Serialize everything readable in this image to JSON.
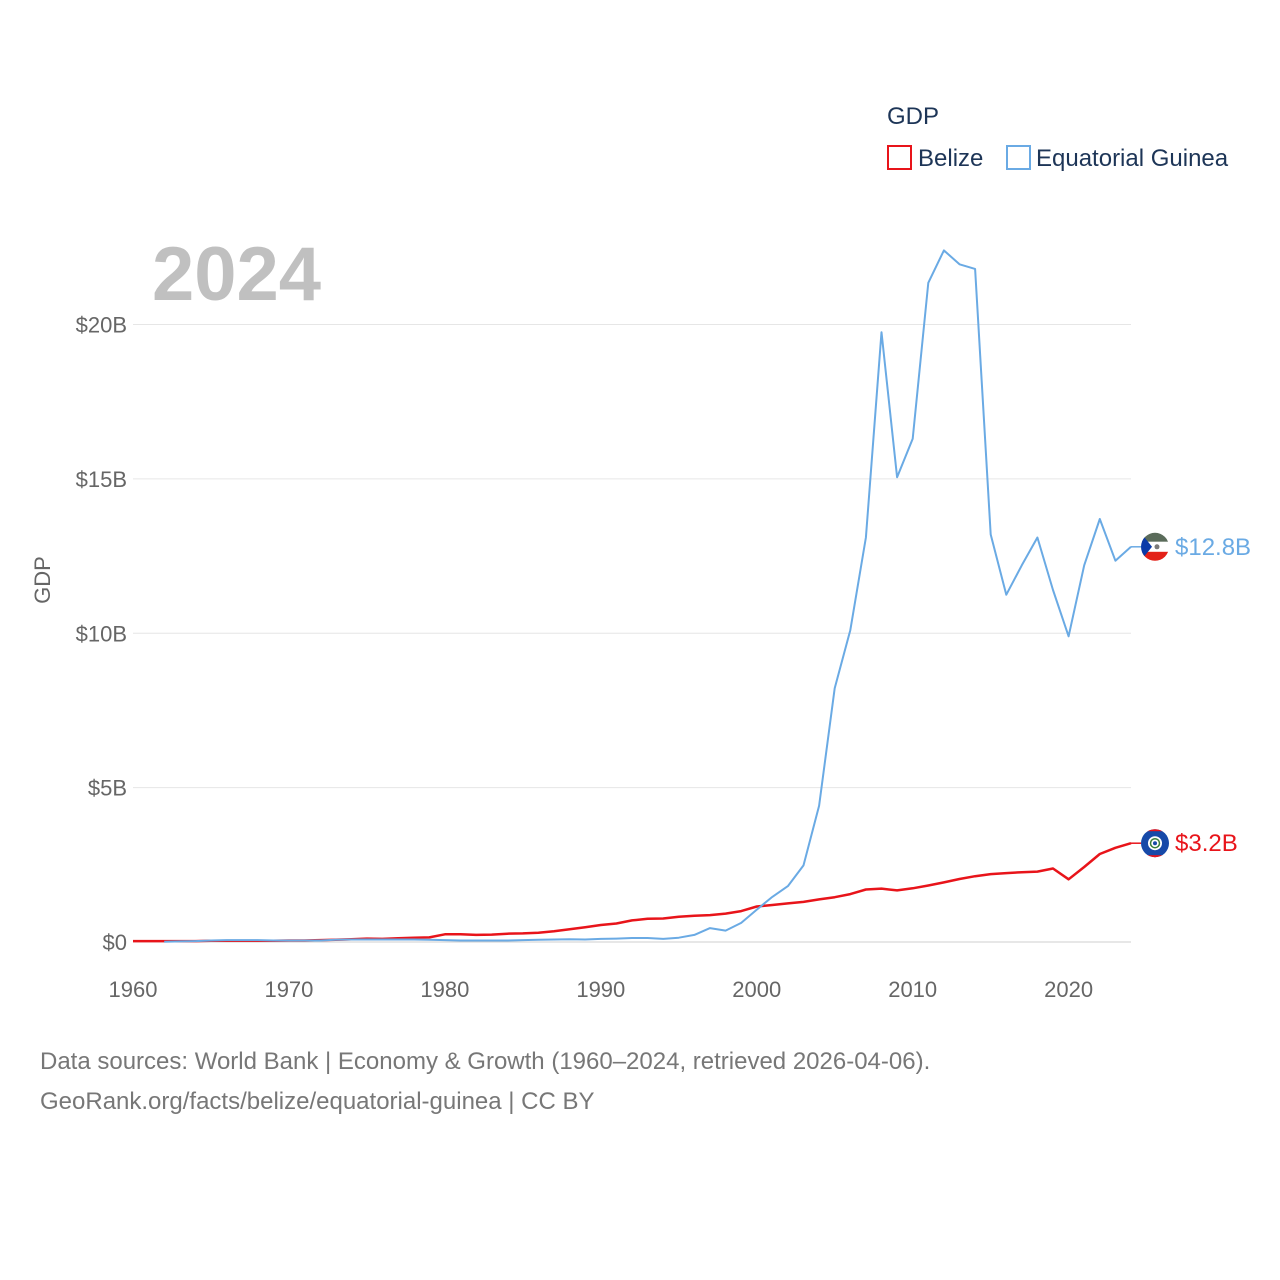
{
  "chart_data": {
    "type": "line",
    "year_label": "2024",
    "ylabel": "GDP",
    "xlim": [
      1960,
      2024
    ],
    "ylim": [
      0,
      22.5
    ],
    "unit": "billion USD",
    "x_ticks": [
      1960,
      1970,
      1980,
      1990,
      2000,
      2010,
      2020
    ],
    "y_ticks": [
      {
        "value": 0,
        "label": "$0"
      },
      {
        "value": 5,
        "label": "$5B"
      },
      {
        "value": 10,
        "label": "$10B"
      },
      {
        "value": 15,
        "label": "$15B"
      },
      {
        "value": 20,
        "label": "$20B"
      }
    ],
    "legend": {
      "title": "GDP",
      "placement": "top-right"
    },
    "series": [
      {
        "name": "Belize",
        "color": "#e8141a",
        "end_label": "$3.2B",
        "flag": "belize-flag-icon",
        "points": [
          [
            1960,
            0.03
          ],
          [
            1961,
            0.03
          ],
          [
            1962,
            0.03
          ],
          [
            1963,
            0.03
          ],
          [
            1964,
            0.03
          ],
          [
            1965,
            0.04
          ],
          [
            1966,
            0.04
          ],
          [
            1967,
            0.04
          ],
          [
            1968,
            0.04
          ],
          [
            1969,
            0.04
          ],
          [
            1970,
            0.05
          ],
          [
            1971,
            0.05
          ],
          [
            1972,
            0.06
          ],
          [
            1973,
            0.07
          ],
          [
            1974,
            0.09
          ],
          [
            1975,
            0.11
          ],
          [
            1976,
            0.1
          ],
          [
            1977,
            0.12
          ],
          [
            1978,
            0.14
          ],
          [
            1979,
            0.15
          ],
          [
            1980,
            0.25
          ],
          [
            1981,
            0.25
          ],
          [
            1982,
            0.23
          ],
          [
            1983,
            0.24
          ],
          [
            1984,
            0.27
          ],
          [
            1985,
            0.28
          ],
          [
            1986,
            0.3
          ],
          [
            1987,
            0.35
          ],
          [
            1988,
            0.41
          ],
          [
            1989,
            0.48
          ],
          [
            1990,
            0.55
          ],
          [
            1991,
            0.6
          ],
          [
            1992,
            0.7
          ],
          [
            1993,
            0.75
          ],
          [
            1994,
            0.76
          ],
          [
            1995,
            0.82
          ],
          [
            1996,
            0.85
          ],
          [
            1997,
            0.87
          ],
          [
            1998,
            0.92
          ],
          [
            1999,
            1.0
          ],
          [
            2000,
            1.15
          ],
          [
            2001,
            1.2
          ],
          [
            2002,
            1.25
          ],
          [
            2003,
            1.3
          ],
          [
            2004,
            1.38
          ],
          [
            2005,
            1.45
          ],
          [
            2006,
            1.55
          ],
          [
            2007,
            1.7
          ],
          [
            2008,
            1.73
          ],
          [
            2009,
            1.67
          ],
          [
            2010,
            1.74
          ],
          [
            2011,
            1.83
          ],
          [
            2012,
            1.93
          ],
          [
            2013,
            2.04
          ],
          [
            2014,
            2.13
          ],
          [
            2015,
            2.2
          ],
          [
            2016,
            2.23
          ],
          [
            2017,
            2.26
          ],
          [
            2018,
            2.28
          ],
          [
            2019,
            2.38
          ],
          [
            2020,
            2.03
          ],
          [
            2021,
            2.43
          ],
          [
            2022,
            2.85
          ],
          [
            2023,
            3.05
          ],
          [
            2024,
            3.2
          ]
        ]
      },
      {
        "name": "Equatorial Guinea",
        "color": "#6aaae4",
        "end_label": "$12.8B",
        "flag": "equatorial-guinea-flag-icon",
        "points": [
          [
            1962,
            0.01
          ],
          [
            1963,
            0.02
          ],
          [
            1964,
            0.03
          ],
          [
            1965,
            0.05
          ],
          [
            1966,
            0.06
          ],
          [
            1967,
            0.06
          ],
          [
            1968,
            0.06
          ],
          [
            1969,
            0.05
          ],
          [
            1970,
            0.05
          ],
          [
            1971,
            0.05
          ],
          [
            1972,
            0.05
          ],
          [
            1973,
            0.07
          ],
          [
            1974,
            0.08
          ],
          [
            1975,
            0.08
          ],
          [
            1976,
            0.08
          ],
          [
            1977,
            0.08
          ],
          [
            1978,
            0.08
          ],
          [
            1979,
            0.07
          ],
          [
            1980,
            0.06
          ],
          [
            1981,
            0.05
          ],
          [
            1982,
            0.05
          ],
          [
            1983,
            0.05
          ],
          [
            1984,
            0.05
          ],
          [
            1985,
            0.06
          ],
          [
            1986,
            0.07
          ],
          [
            1987,
            0.08
          ],
          [
            1988,
            0.09
          ],
          [
            1989,
            0.08
          ],
          [
            1990,
            0.1
          ],
          [
            1991,
            0.11
          ],
          [
            1992,
            0.13
          ],
          [
            1993,
            0.13
          ],
          [
            1994,
            0.1
          ],
          [
            1995,
            0.14
          ],
          [
            1996,
            0.23
          ],
          [
            1997,
            0.45
          ],
          [
            1998,
            0.37
          ],
          [
            1999,
            0.62
          ],
          [
            2000,
            1.05
          ],
          [
            2001,
            1.46
          ],
          [
            2002,
            1.81
          ],
          [
            2003,
            2.48
          ],
          [
            2004,
            4.41
          ],
          [
            2005,
            8.22
          ],
          [
            2006,
            10.1
          ],
          [
            2007,
            13.1
          ],
          [
            2008,
            19.75
          ],
          [
            2009,
            15.05
          ],
          [
            2010,
            16.3
          ],
          [
            2011,
            21.35
          ],
          [
            2012,
            22.4
          ],
          [
            2013,
            21.95
          ],
          [
            2014,
            21.8
          ],
          [
            2015,
            13.2
          ],
          [
            2016,
            11.25
          ],
          [
            2017,
            12.2
          ],
          [
            2018,
            13.1
          ],
          [
            2019,
            11.4
          ],
          [
            2020,
            9.9
          ],
          [
            2021,
            12.2
          ],
          [
            2022,
            13.7
          ],
          [
            2023,
            12.35
          ],
          [
            2024,
            12.8
          ]
        ]
      }
    ]
  },
  "footer": {
    "line1": "Data sources: World Bank | Economy & Growth (1960–2024, retrieved 2026-04-06).",
    "line2": "GeoRank.org/facts/belize/equatorial-guinea | CC BY"
  }
}
